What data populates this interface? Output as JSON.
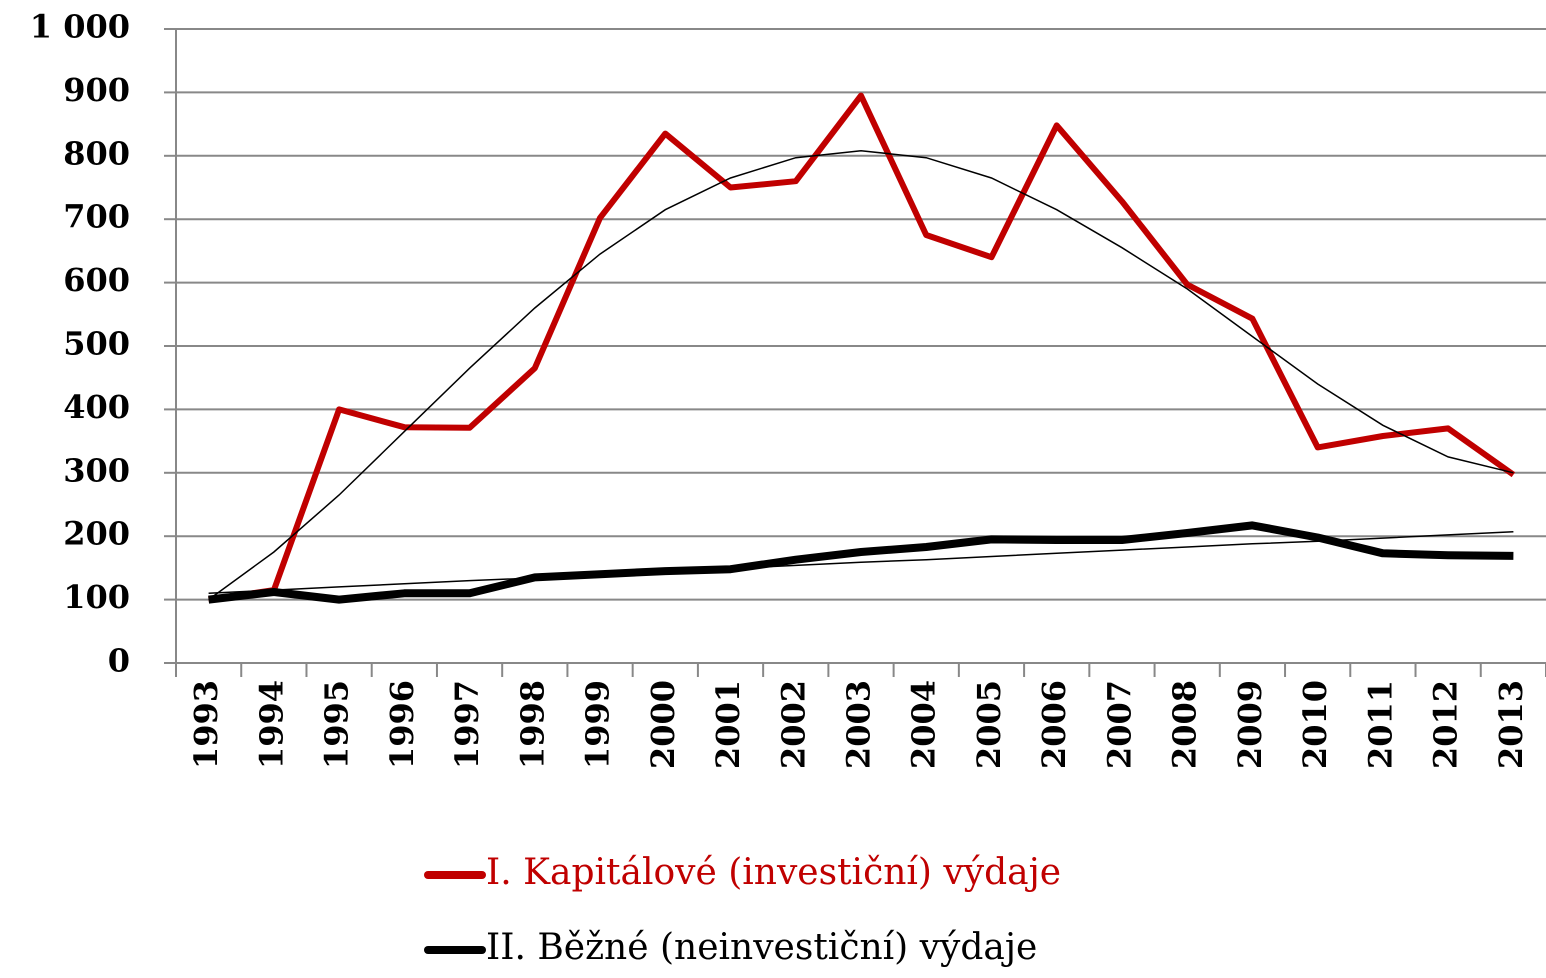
{
  "chart_data": {
    "type": "line",
    "categories": [
      "1993",
      "1994",
      "1995",
      "1996",
      "1997",
      "1998",
      "1999",
      "2000",
      "2001",
      "2002",
      "2003",
      "2004",
      "2005",
      "2006",
      "2007",
      "2008",
      "2009",
      "2010",
      "2011",
      "2012",
      "2013"
    ],
    "series": [
      {
        "name": "I. Kapitálové (investiční) výdaje",
        "color": "#c00000",
        "values": [
          100,
          115,
          400,
          372,
          371,
          465,
          702,
          835,
          750,
          760,
          895,
          675,
          640,
          848,
          728,
          597,
          543,
          340,
          358,
          370,
          297
        ],
        "trend": [
          100,
          175,
          265,
          365,
          465,
          560,
          645,
          715,
          765,
          797,
          808,
          797,
          765,
          715,
          655,
          590,
          515,
          440,
          375,
          325,
          300
        ]
      },
      {
        "name": "II. Běžné (neinvestiční) výdaje",
        "color": "#000000",
        "values": [
          100,
          112,
          100,
          110,
          110,
          135,
          140,
          145,
          148,
          163,
          175,
          183,
          195,
          194,
          194,
          205,
          217,
          198,
          173,
          170,
          169
        ],
        "trend": [
          110,
          115,
          120,
          125,
          130,
          134,
          139,
          144,
          149,
          154,
          159,
          163,
          168,
          173,
          178,
          183,
          188,
          192,
          197,
          202,
          207
        ]
      }
    ],
    "ylim": [
      0,
      1000
    ],
    "yticks": [
      0,
      100,
      200,
      300,
      400,
      500,
      600,
      700,
      800,
      900,
      {
        "value": 1000,
        "label": "1 000"
      }
    ],
    "grid": true,
    "legend": "bottom"
  }
}
